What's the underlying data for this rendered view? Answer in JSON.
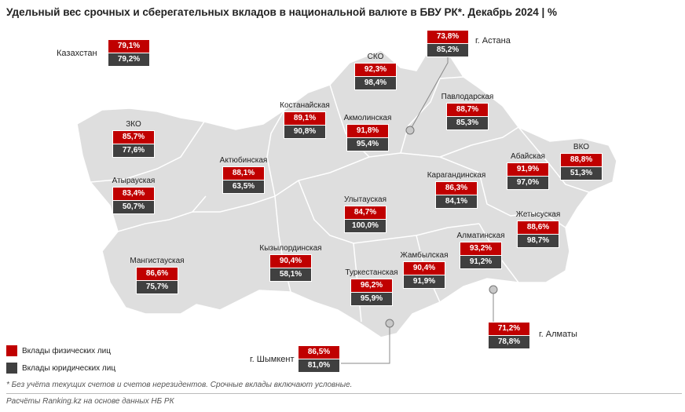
{
  "title": "Удельный вес срочных и сберегательных вкладов в национальной валюте в БВУ РК*. Декабрь 2024 | %",
  "colors": {
    "individuals": "#c00000",
    "legal": "#404040",
    "map_fill": "#dedede"
  },
  "kazakhstan": {
    "name": "Казахстан",
    "individuals": "79,1%",
    "legal": "79,2%"
  },
  "regions": {
    "zko": {
      "name": "ЗКО",
      "individuals": "85,7%",
      "legal": "77,6%"
    },
    "atyrau": {
      "name": "Атырауская",
      "individuals": "83,4%",
      "legal": "50,7%"
    },
    "mangistau": {
      "name": "Мангистауская",
      "individuals": "86,6%",
      "legal": "75,7%"
    },
    "aktobe": {
      "name": "Актюбинская",
      "individuals": "88,1%",
      "legal": "63,5%"
    },
    "kostanay": {
      "name": "Костанайская",
      "individuals": "89,1%",
      "legal": "90,8%"
    },
    "sko": {
      "name": "СКО",
      "individuals": "92,3%",
      "legal": "98,4%"
    },
    "akmola": {
      "name": "Акмолинская",
      "individuals": "91,8%",
      "legal": "95,4%"
    },
    "pavlodar": {
      "name": "Павлодарская",
      "individuals": "88,7%",
      "legal": "85,3%"
    },
    "vko": {
      "name": "ВКО",
      "individuals": "88,8%",
      "legal": "51,3%"
    },
    "abay": {
      "name": "Абайская",
      "individuals": "91,9%",
      "legal": "97,0%"
    },
    "karaganda": {
      "name": "Карагандинская",
      "individuals": "86,3%",
      "legal": "84,1%"
    },
    "ulytau": {
      "name": "Улытауская",
      "individuals": "84,7%",
      "legal": "100,0%"
    },
    "kyzylorda": {
      "name": "Кызылординская",
      "individuals": "90,4%",
      "legal": "58,1%"
    },
    "turkestan": {
      "name": "Туркестанская",
      "individuals": "96,2%",
      "legal": "95,9%"
    },
    "zhambyl": {
      "name": "Жамбылская",
      "individuals": "90,4%",
      "legal": "91,9%"
    },
    "almaty_reg": {
      "name": "Алматинская",
      "individuals": "93,2%",
      "legal": "91,2%"
    },
    "zhetysu": {
      "name": "Жетысуская",
      "individuals": "88,6%",
      "legal": "98,7%"
    }
  },
  "cities": {
    "astana": {
      "name": "г. Астана",
      "individuals": "73,8%",
      "legal": "85,2%"
    },
    "almaty": {
      "name": "г. Алматы",
      "individuals": "71,2%",
      "legal": "78,8%"
    },
    "shymkent": {
      "name": "г. Шымкент",
      "individuals": "86,5%",
      "legal": "81,0%"
    }
  },
  "legend": {
    "individuals_label": "Вклады физических лиц",
    "legal_label": "Вклады юридических лиц"
  },
  "footnote": "* Без учёта текущих счетов и счетов нерезидентов. Срочные вклады включают условные.",
  "source": "Расчёты Ranking.kz на основе данных НБ РК"
}
